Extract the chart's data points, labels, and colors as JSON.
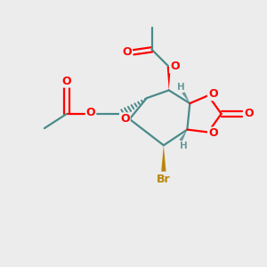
{
  "bg_color": "#ececec",
  "atom_colors": {
    "O": "#ff0000",
    "Br": "#b8860b",
    "C": "#4a8a8a",
    "H": "#6a9a9a",
    "black": "#000000"
  },
  "lw": 1.6
}
